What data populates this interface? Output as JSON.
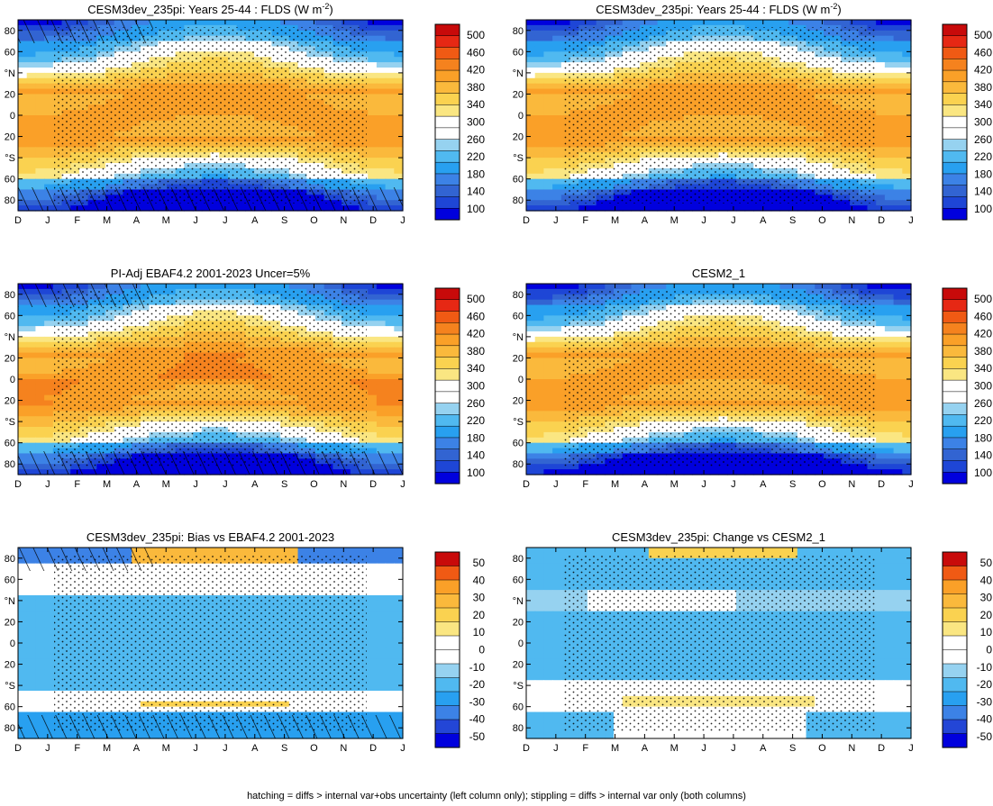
{
  "chart_data": [
    {
      "type": "contour",
      "title": "CESM3dev_235pi: Years 25-44 : FLDS (W m",
      "title_sup": "-2",
      "title_close": ")",
      "field": "model",
      "months": [
        "D",
        "J",
        "F",
        "M",
        "A",
        "M",
        "J",
        "J",
        "A",
        "S",
        "O",
        "N",
        "D",
        "J"
      ],
      "y_ticks": [
        "80",
        "60",
        "°N",
        "20",
        "0",
        "20",
        "°S",
        "60",
        "80"
      ],
      "ylim": [
        -90,
        90
      ],
      "colorbar_levels": [
        "500",
        "460",
        "420",
        "380",
        "340",
        "300",
        "260",
        "220",
        "180",
        "140",
        "100"
      ],
      "hatching": true,
      "stippling": true
    },
    {
      "type": "contour",
      "title": "CESM3dev_235pi: Years 25-44 : FLDS (W m",
      "title_sup": "-2",
      "title_close": ")",
      "field": "model",
      "months": [
        "D",
        "J",
        "F",
        "M",
        "A",
        "M",
        "J",
        "J",
        "A",
        "S",
        "O",
        "N",
        "D",
        "J"
      ],
      "y_ticks": [
        "80",
        "60",
        "°N",
        "20",
        "0",
        "20",
        "°S",
        "60",
        "80"
      ],
      "ylim": [
        -90,
        90
      ],
      "colorbar_levels": [
        "500",
        "460",
        "420",
        "380",
        "340",
        "300",
        "260",
        "220",
        "180",
        "140",
        "100"
      ],
      "hatching": false,
      "stippling": true
    },
    {
      "type": "contour",
      "title": "PI-Adj EBAF4.2 2001-2023 Uncer=5%",
      "field": "obs",
      "months": [
        "D",
        "J",
        "F",
        "M",
        "A",
        "M",
        "J",
        "J",
        "A",
        "S",
        "O",
        "N",
        "D",
        "J"
      ],
      "y_ticks": [
        "80",
        "60",
        "°N",
        "20",
        "0",
        "20",
        "°S",
        "60",
        "80"
      ],
      "ylim": [
        -90,
        90
      ],
      "colorbar_levels": [
        "500",
        "460",
        "420",
        "380",
        "340",
        "300",
        "260",
        "220",
        "180",
        "140",
        "100"
      ],
      "hatching": true,
      "stippling": true
    },
    {
      "type": "contour",
      "title": "CESM2_1",
      "field": "model2",
      "months": [
        "D",
        "J",
        "F",
        "M",
        "A",
        "M",
        "J",
        "J",
        "A",
        "S",
        "O",
        "N",
        "D",
        "J"
      ],
      "y_ticks": [
        "80",
        "60",
        "°N",
        "20",
        "0",
        "20",
        "°S",
        "60",
        "80"
      ],
      "ylim": [
        -90,
        90
      ],
      "colorbar_levels": [
        "500",
        "460",
        "420",
        "380",
        "340",
        "300",
        "260",
        "220",
        "180",
        "140",
        "100"
      ],
      "hatching": false,
      "stippling": true
    },
    {
      "type": "contour",
      "title": "CESM3dev_235pi: Bias vs EBAF4.2 2001-2023",
      "field": "bias",
      "months": [
        "D",
        "J",
        "F",
        "M",
        "A",
        "M",
        "J",
        "J",
        "A",
        "S",
        "O",
        "N",
        "D",
        "J"
      ],
      "y_ticks": [
        "80",
        "60",
        "°N",
        "20",
        "0",
        "20",
        "°S",
        "60",
        "80"
      ],
      "ylim": [
        -90,
        90
      ],
      "colorbar_levels": [
        "50",
        "40",
        "30",
        "20",
        "10",
        "0",
        "-10",
        "-20",
        "-30",
        "-40",
        "-50"
      ],
      "hatching": true,
      "stippling": true
    },
    {
      "type": "contour",
      "title": "CESM3dev_235pi: Change vs CESM2_1",
      "field": "change",
      "months": [
        "D",
        "J",
        "F",
        "M",
        "A",
        "M",
        "J",
        "J",
        "A",
        "S",
        "O",
        "N",
        "D",
        "J"
      ],
      "y_ticks": [
        "80",
        "60",
        "°N",
        "20",
        "0",
        "20",
        "°S",
        "60",
        "80"
      ],
      "ylim": [
        -90,
        90
      ],
      "colorbar_levels": [
        "50",
        "40",
        "30",
        "20",
        "10",
        "0",
        "-10",
        "-20",
        "-30",
        "-40",
        "-50"
      ],
      "hatching": false,
      "stippling": true
    }
  ],
  "colors": {
    "abs_scale": [
      "#0000dd",
      "#1e46d6",
      "#3264d2",
      "#3c82e6",
      "#28a0f0",
      "#50b9f0",
      "#96d2f0",
      "#ffffff",
      "#ffffff",
      "#fae682",
      "#fad250",
      "#fab93c",
      "#faa028",
      "#f5821e",
      "#f05a14",
      "#e62814",
      "#c80a0a"
    ],
    "diff_scale": [
      "#0000dd",
      "#2346d6",
      "#3c82e6",
      "#28a0f0",
      "#50b9f0",
      "#96d2f0",
      "#ffffff",
      "#ffffff",
      "#fae682",
      "#fad250",
      "#fab93c",
      "#faa028",
      "#f05a14",
      "#c80a0a"
    ]
  },
  "caption": "hatching = diffs > internal var+obs uncertainty (left column only); stippling = diffs > internal var only (both columns)"
}
